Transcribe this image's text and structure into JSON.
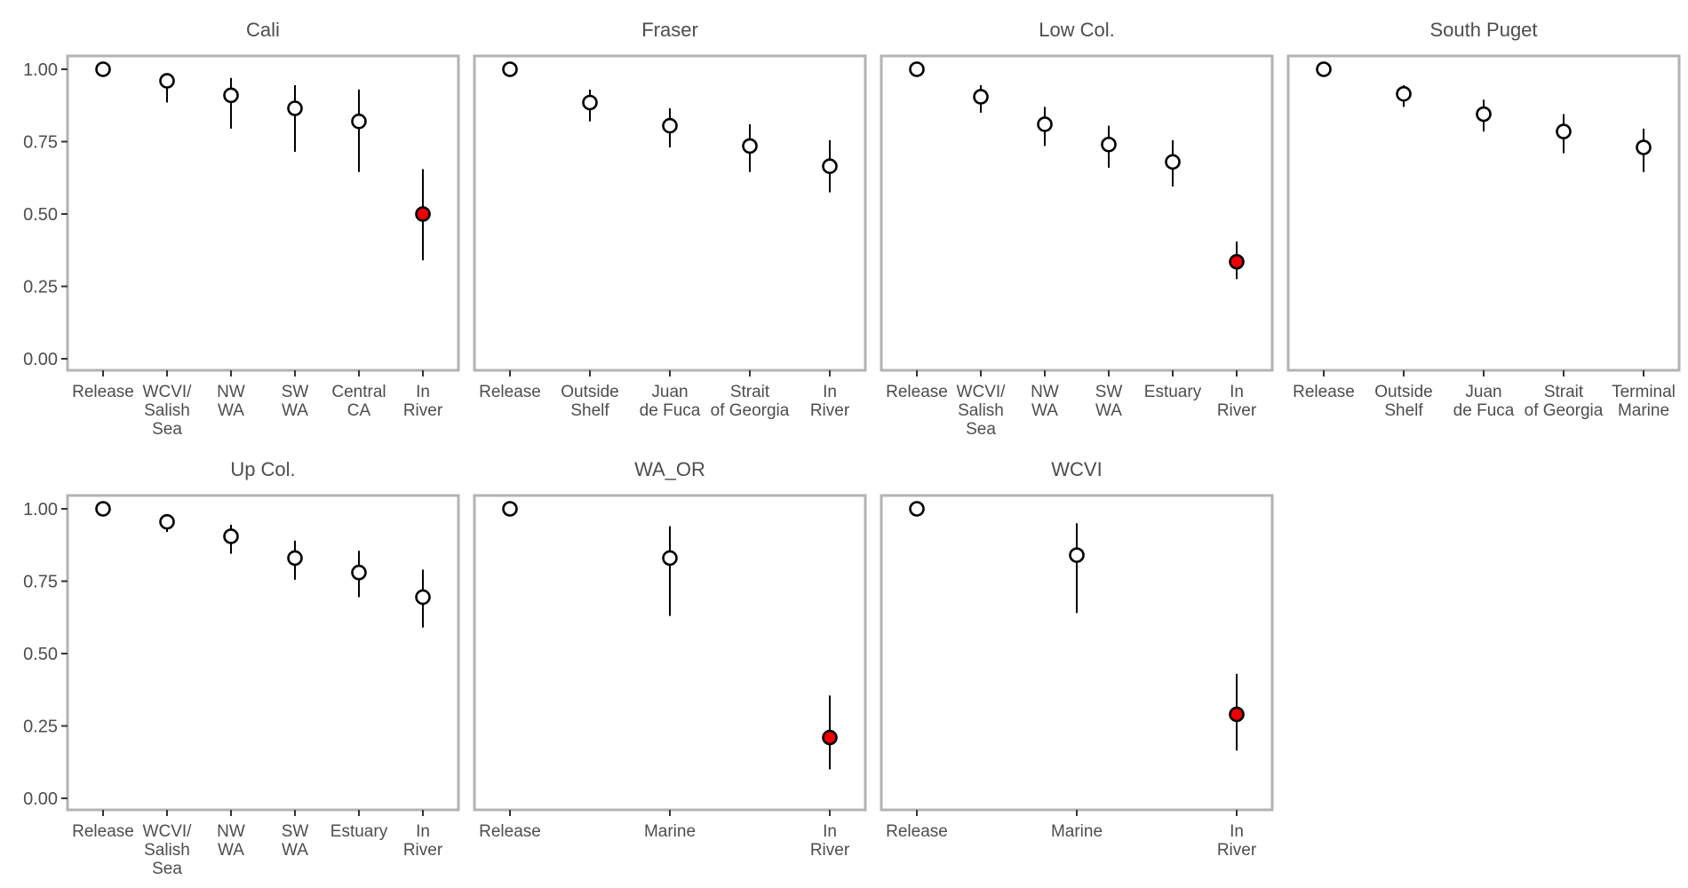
{
  "colors": {
    "panel_border": "#b3b3b3",
    "axis_text": "#4d4d4d",
    "point_default": "#ffffff",
    "point_highlight": "#ee0000",
    "point_stroke": "#000000",
    "errorbar": "#000000"
  },
  "chart_data": [
    {
      "type": "scatter",
      "title": "Cali",
      "categories": [
        "Release",
        "WCVI/\nSalish\nSea",
        "NW\nWA",
        "SW\nWA",
        "Central\nCA",
        "In\nRiver"
      ],
      "y": [
        1.0,
        0.96,
        0.91,
        0.865,
        0.82,
        0.5
      ],
      "lower": [
        1.0,
        0.885,
        0.795,
        0.715,
        0.645,
        0.34
      ],
      "upper": [
        1.0,
        0.98,
        0.97,
        0.945,
        0.93,
        0.655
      ],
      "highlight": [
        false,
        false,
        false,
        false,
        false,
        true
      ],
      "ylim": [
        0,
        1
      ],
      "yticks": [
        "0.00",
        "0.25",
        "0.50",
        "0.75",
        "1.00"
      ],
      "grid": false
    },
    {
      "type": "scatter",
      "title": "Fraser",
      "categories": [
        "Release",
        "Outside\nShelf",
        "Juan\nde Fuca",
        "Strait\nof Georgia",
        "In\nRiver"
      ],
      "y": [
        1.0,
        0.885,
        0.805,
        0.735,
        0.665
      ],
      "lower": [
        1.0,
        0.82,
        0.73,
        0.645,
        0.575
      ],
      "upper": [
        1.0,
        0.93,
        0.865,
        0.81,
        0.755
      ],
      "highlight": [
        false,
        false,
        false,
        false,
        false
      ],
      "ylim": [
        0,
        1
      ],
      "grid": false
    },
    {
      "type": "scatter",
      "title": "Low Col.",
      "categories": [
        "Release",
        "WCVI/\nSalish\nSea",
        "NW\nWA",
        "SW\nWA",
        "Estuary",
        "In\nRiver"
      ],
      "y": [
        1.0,
        0.905,
        0.81,
        0.74,
        0.68,
        0.335
      ],
      "lower": [
        1.0,
        0.85,
        0.735,
        0.66,
        0.595,
        0.275
      ],
      "upper": [
        1.0,
        0.945,
        0.87,
        0.805,
        0.755,
        0.405
      ],
      "highlight": [
        false,
        false,
        false,
        false,
        false,
        true
      ],
      "ylim": [
        0,
        1
      ],
      "grid": false
    },
    {
      "type": "scatter",
      "title": "South Puget",
      "categories": [
        "Release",
        "Outside\nShelf",
        "Juan\nde Fuca",
        "Strait\nof Georgia",
        "Terminal\nMarine"
      ],
      "y": [
        1.0,
        0.915,
        0.845,
        0.785,
        0.73
      ],
      "lower": [
        1.0,
        0.87,
        0.785,
        0.71,
        0.645
      ],
      "upper": [
        1.0,
        0.945,
        0.895,
        0.845,
        0.795
      ],
      "highlight": [
        false,
        false,
        false,
        false,
        false
      ],
      "ylim": [
        0,
        1
      ],
      "grid": false
    },
    {
      "type": "scatter",
      "title": "Up Col.",
      "categories": [
        "Release",
        "WCVI/\nSalish\nSea",
        "NW\nWA",
        "SW\nWA",
        "Estuary",
        "In\nRiver"
      ],
      "y": [
        1.0,
        0.955,
        0.905,
        0.83,
        0.78,
        0.695
      ],
      "lower": [
        1.0,
        0.92,
        0.845,
        0.755,
        0.695,
        0.59
      ],
      "upper": [
        1.0,
        0.975,
        0.945,
        0.89,
        0.855,
        0.79
      ],
      "highlight": [
        false,
        false,
        false,
        false,
        false,
        false
      ],
      "ylim": [
        0,
        1
      ],
      "yticks": [
        "0.00",
        "0.25",
        "0.50",
        "0.75",
        "1.00"
      ],
      "grid": false
    },
    {
      "type": "scatter",
      "title": "WA_OR",
      "categories": [
        "Release",
        "Marine",
        "In\nRiver"
      ],
      "y": [
        1.0,
        0.83,
        0.21
      ],
      "lower": [
        1.0,
        0.63,
        0.1
      ],
      "upper": [
        1.0,
        0.94,
        0.355
      ],
      "highlight": [
        false,
        false,
        true
      ],
      "ylim": [
        0,
        1
      ],
      "grid": false
    },
    {
      "type": "scatter",
      "title": "WCVI",
      "categories": [
        "Release",
        "Marine",
        "In\nRiver"
      ],
      "y": [
        1.0,
        0.84,
        0.29
      ],
      "lower": [
        1.0,
        0.64,
        0.165
      ],
      "upper": [
        1.0,
        0.95,
        0.43
      ],
      "highlight": [
        false,
        false,
        true
      ],
      "ylim": [
        0,
        1
      ],
      "grid": false
    }
  ]
}
